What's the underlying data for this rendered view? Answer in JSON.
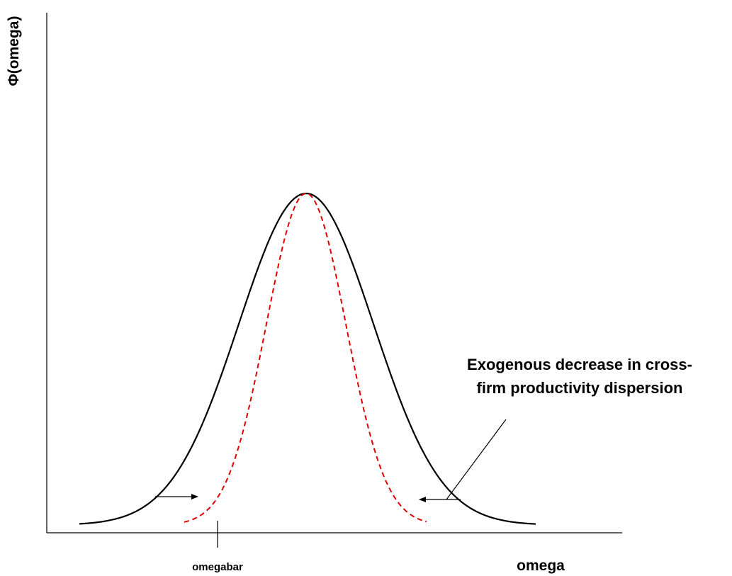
{
  "y_axis_label": "Φ(omega)",
  "x_axis_label": "omega",
  "marker_label": "omegabar",
  "annotation": {
    "lines": [
      "Exogenous decrease in cross-",
      "firm productivity dispersion"
    ]
  }
}
